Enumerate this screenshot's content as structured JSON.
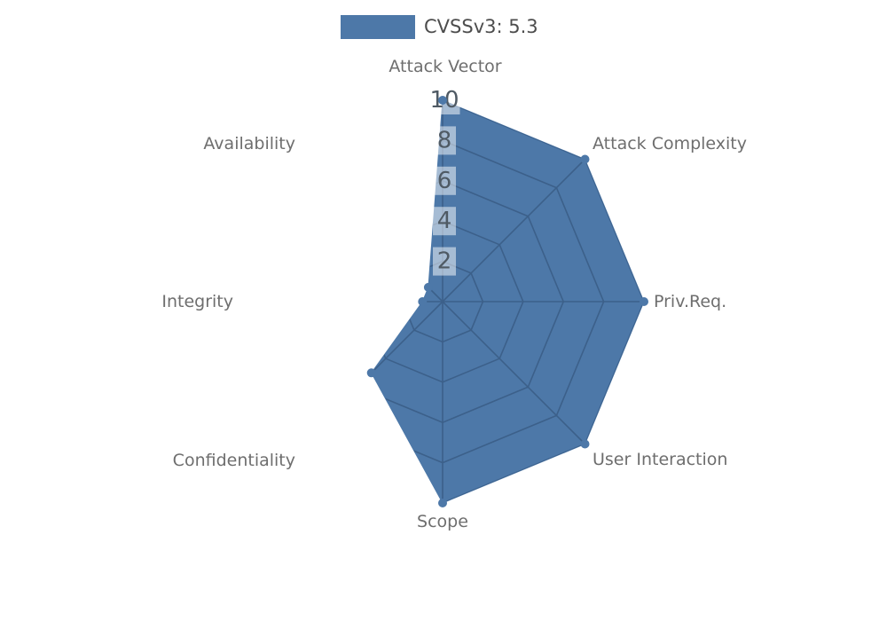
{
  "legend": {
    "label": "CVSSv3: 5.3"
  },
  "chart_data": {
    "type": "radar",
    "legend_entries": [
      "CVSSv3: 5.3"
    ],
    "legend_position": "top-center",
    "categories": [
      "Attack Vector",
      "Attack Complexity",
      "Priv.Req.",
      "User Interaction",
      "Scope",
      "Confidentiality",
      "Integrity",
      "Availability"
    ],
    "series": [
      {
        "name": "CVSSv3: 5.3",
        "values": [
          10,
          10,
          10,
          10,
          10,
          5,
          1,
          1
        ]
      }
    ],
    "rlim": [
      0,
      10
    ],
    "tick_values": [
      2,
      4,
      6,
      8,
      10
    ],
    "grid_shape": "polygon",
    "grid_visible_only_inside_series": true,
    "colors": {
      "series_fill": "#4d78a8",
      "grid_line": "#3c608a",
      "tick_text": "#4f5a64",
      "tick_box": "rgba(255,255,255,0.5)",
      "axis_label": "#6e6e6e",
      "legend_text": "#4d4d4d"
    }
  }
}
